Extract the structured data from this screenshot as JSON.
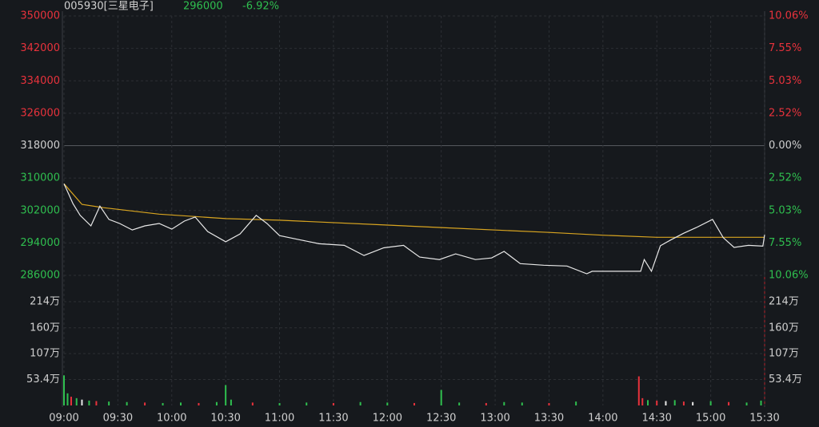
{
  "chart_data": [
    {
      "type": "line",
      "title": "005930[三星电子]",
      "last_price": 296000,
      "change": {
        "value": -6.92,
        "label": "-6.92%"
      },
      "xlim": [
        "09:00",
        "15:30"
      ],
      "xticks": [
        "09:00",
        "09:30",
        "10:00",
        "10:30",
        "11:00",
        "11:30",
        "12:00",
        "12:30",
        "13:00",
        "13:30",
        "14:00",
        "14:30",
        "15:00",
        "15:30"
      ],
      "ylim": [
        286000,
        350000
      ],
      "yticks": [
        286000,
        294000,
        302000,
        310000,
        318000,
        326000,
        334000,
        342000,
        350000
      ],
      "y2lim": [
        -10.06,
        10.06
      ],
      "y2ticks": [
        {
          "value": -10.06,
          "label": "10.06%"
        },
        {
          "value": -7.55,
          "label": "7.55%"
        },
        {
          "value": -5.03,
          "label": "5.03%"
        },
        {
          "value": -2.52,
          "label": "2.52%"
        },
        {
          "value": 0,
          "label": "0.00%"
        },
        {
          "value": 2.52,
          "label": "2.52%"
        },
        {
          "value": 5.03,
          "label": "5.03%"
        },
        {
          "value": 7.55,
          "label": "7.55%"
        },
        {
          "value": 10.06,
          "label": "10.06%"
        }
      ],
      "up_color": "#e8323c",
      "down_color": "#2fbf4f",
      "flat_color": "#cfcfcf",
      "grid": true,
      "series": [
        {
          "color": "#e8e8e8",
          "x": [
            "09:00",
            "09:03",
            "09:05",
            "09:09",
            "09:15",
            "09:20",
            "09:25",
            "09:31",
            "09:38",
            "09:45",
            "09:53",
            "10:00",
            "10:07",
            "10:13",
            "10:20",
            "10:30",
            "10:38",
            "10:47",
            "10:53",
            "11:00",
            "11:11",
            "11:22",
            "11:36",
            "11:47",
            "11:58",
            "12:09",
            "12:18",
            "12:29",
            "12:38",
            "12:49",
            "12:58",
            "13:05",
            "13:14",
            "13:27",
            "13:40",
            "13:51",
            "13:54",
            "14:21",
            "14:23",
            "14:27",
            "14:32",
            "14:38",
            "14:45",
            "14:52",
            "15:01",
            "15:07",
            "15:13",
            "15:21",
            "15:29",
            "15:30"
          ],
          "values": [
            308600,
            305700,
            303700,
            300800,
            298200,
            303100,
            299800,
            298800,
            297200,
            298200,
            298800,
            297400,
            299400,
            300400,
            296800,
            294300,
            296200,
            300800,
            298800,
            295800,
            294800,
            293800,
            293400,
            290900,
            292800,
            293400,
            290500,
            289900,
            291300,
            289900,
            290300,
            291900,
            288900,
            288500,
            288300,
            286400,
            287000,
            287000,
            289900,
            287000,
            293300,
            294800,
            296400,
            297800,
            299800,
            295300,
            292900,
            293400,
            293200,
            296000
          ]
        },
        {
          "color": "#d9a520",
          "x": [
            "09:00",
            "09:10",
            "09:22",
            "09:53",
            "10:30",
            "11:00",
            "12:00",
            "12:30",
            "13:30",
            "14:00",
            "14:30",
            "15:00",
            "15:30"
          ],
          "values": [
            308600,
            303500,
            302700,
            301100,
            300000,
            299600,
            298400,
            297800,
            296600,
            295900,
            295400,
            295400,
            295400
          ]
        }
      ]
    },
    {
      "type": "bar",
      "ylim": [
        0,
        2600000
      ],
      "yticks": [
        {
          "value": 534000,
          "label": "53.4万"
        },
        {
          "value": 1070000,
          "label": "107万"
        },
        {
          "value": 1600000,
          "label": "160万"
        },
        {
          "value": 2140000,
          "label": "214万"
        }
      ],
      "x": [
        "09:00",
        "09:02",
        "09:04",
        "09:07",
        "09:10",
        "09:14",
        "09:18",
        "09:25",
        "09:35",
        "09:45",
        "09:55",
        "10:05",
        "10:15",
        "10:25",
        "10:30",
        "10:33",
        "10:45",
        "11:00",
        "11:15",
        "11:30",
        "11:45",
        "12:00",
        "12:15",
        "12:30",
        "12:40",
        "12:55",
        "13:05",
        "13:15",
        "13:30",
        "13:45",
        "14:20",
        "14:22",
        "14:25",
        "14:30",
        "14:35",
        "14:40",
        "14:45",
        "14:50",
        "15:00",
        "15:10",
        "15:20",
        "15:28"
      ],
      "values": [
        620000,
        250000,
        180000,
        150000,
        120000,
        100000,
        90000,
        80000,
        70000,
        60000,
        50000,
        60000,
        50000,
        70000,
        420000,
        120000,
        60000,
        50000,
        60000,
        50000,
        70000,
        60000,
        50000,
        320000,
        60000,
        50000,
        70000,
        60000,
        50000,
        80000,
        600000,
        150000,
        110000,
        100000,
        90000,
        110000,
        80000,
        70000,
        90000,
        70000,
        60000,
        100000
      ],
      "colors": [
        "#2fbf4f",
        "#2fbf4f",
        "#e8323c",
        "#2fbf4f",
        "#e8e8e8",
        "#2fbf4f",
        "#e8323c",
        "#2fbf4f",
        "#2fbf4f",
        "#e8323c",
        "#2fbf4f",
        "#2fbf4f",
        "#e8323c",
        "#2fbf4f",
        "#2fbf4f",
        "#2fbf4f",
        "#e8323c",
        "#2fbf4f",
        "#2fbf4f",
        "#e8323c",
        "#2fbf4f",
        "#2fbf4f",
        "#e8323c",
        "#2fbf4f",
        "#2fbf4f",
        "#e8323c",
        "#2fbf4f",
        "#2fbf4f",
        "#e8323c",
        "#2fbf4f",
        "#e8323c",
        "#e8323c",
        "#2fbf4f",
        "#e8323c",
        "#e8e8e8",
        "#2fbf4f",
        "#e8323c",
        "#e8e8e8",
        "#2fbf4f",
        "#e8323c",
        "#2fbf4f",
        "#2fbf4f"
      ]
    }
  ]
}
